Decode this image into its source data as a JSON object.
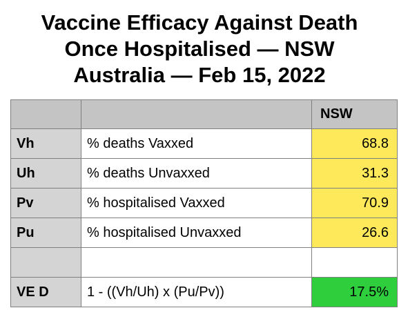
{
  "title": {
    "line1": "Vaccine Efficacy Against Death",
    "line2": "Once Hospitalised — NSW",
    "line3": "Australia — Feb 15, 2022"
  },
  "table": {
    "header": {
      "col0": "",
      "col1": "",
      "col2": "NSW"
    },
    "rows": [
      {
        "code": "Vh",
        "label": "% deaths Vaxxed",
        "value": "68.8",
        "highlight": "#fde95a"
      },
      {
        "code": "Uh",
        "label": "% deaths Unvaxxed",
        "value": "31.3",
        "highlight": "#fde95a"
      },
      {
        "code": "Pv",
        "label": "% hospitalised Vaxxed",
        "value": "70.9",
        "highlight": "#fde95a"
      },
      {
        "code": "Pu",
        "label": "% hospitalised Unvaxxed",
        "value": "26.6",
        "highlight": "#fde95a"
      },
      {
        "code": "",
        "label": "",
        "value": ""
      },
      {
        "code": "VE D",
        "label": "1 - ((Vh/Uh) x (Pu/Pv))",
        "value": "17.5%",
        "highlight": "#2ece3d"
      }
    ]
  }
}
